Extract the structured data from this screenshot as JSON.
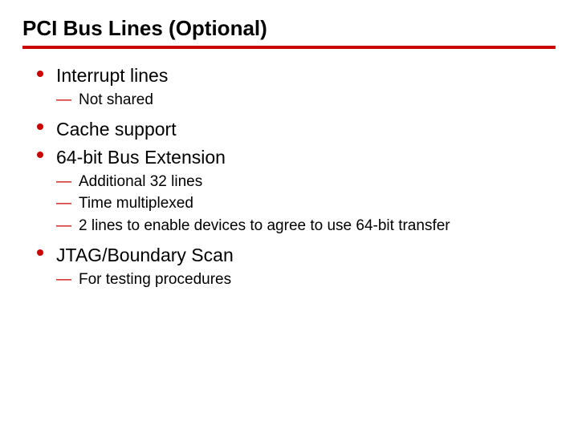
{
  "colors": {
    "rule": "#cc0000",
    "bullet": "#cc0000",
    "dash": "#cc0000",
    "text": "#000000",
    "background": "#ffffff"
  },
  "typography": {
    "title_fontsize": 26,
    "level1_fontsize": 23,
    "level2_fontsize": 19,
    "font_family": "Verdana, Tahoma, sans-serif",
    "title_weight": "700"
  },
  "title": "PCI Bus Lines (Optional)",
  "bullets": [
    {
      "text": "Interrupt lines",
      "subs": [
        {
          "text": "Not shared"
        }
      ]
    },
    {
      "text": "Cache support",
      "subs": []
    },
    {
      "text": "64-bit Bus Extension",
      "subs": [
        {
          "text": "Additional 32 lines"
        },
        {
          "text": "Time multiplexed"
        },
        {
          "text": " 2 lines to enable devices to agree to use 64-bit transfer"
        }
      ]
    },
    {
      "text": "JTAG/Boundary Scan",
      "subs": [
        {
          "text": "For testing procedures"
        }
      ]
    }
  ]
}
